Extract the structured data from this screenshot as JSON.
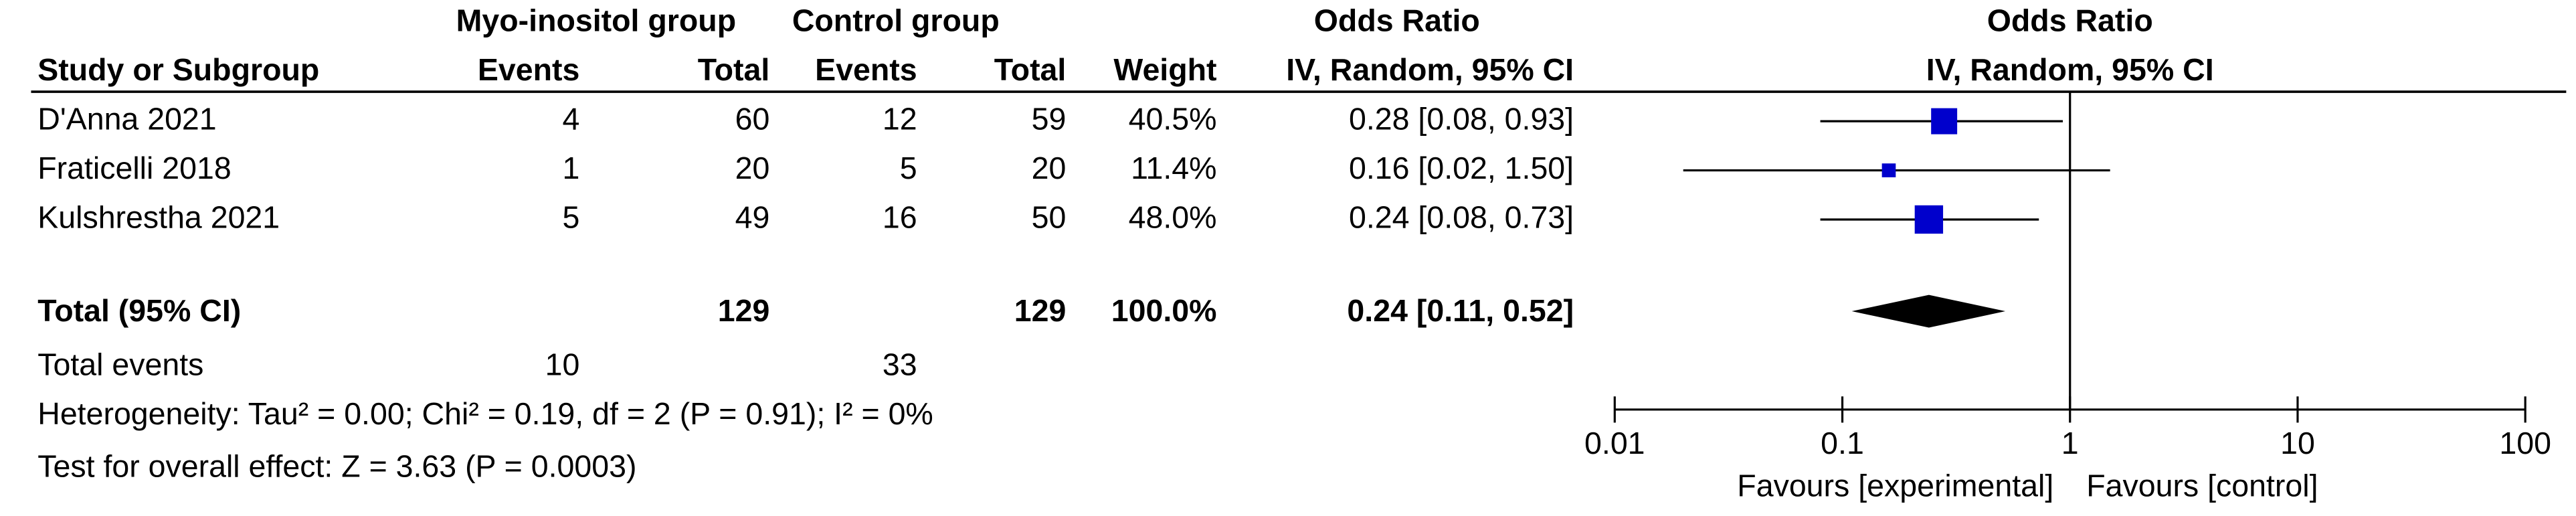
{
  "chart_data": {
    "type": "forest",
    "headers": {
      "group1": "Myo-inositol group",
      "group2": "Control group",
      "or_table": "Odds Ratio",
      "or_plot": "Odds Ratio",
      "study": "Study or Subgroup",
      "events1": "Events",
      "total1": "Total",
      "events2": "Events",
      "total2": "Total",
      "weight": "Weight",
      "method": "IV, Random, 95% CI",
      "plot_method": "IV, Random, 95% CI"
    },
    "studies": [
      {
        "name": "D'Anna 2021",
        "events1": 4,
        "total1": 60,
        "events2": 12,
        "total2": 59,
        "weight": 40.5,
        "weight_label": "40.5%",
        "or": 0.28,
        "ci_low": 0.08,
        "ci_high": 0.93,
        "or_label": "0.28 [0.08, 0.93]"
      },
      {
        "name": "Fraticelli 2018",
        "events1": 1,
        "total1": 20,
        "events2": 5,
        "total2": 20,
        "weight": 11.4,
        "weight_label": "11.4%",
        "or": 0.16,
        "ci_low": 0.02,
        "ci_high": 1.5,
        "or_label": "0.16 [0.02, 1.50]"
      },
      {
        "name": "Kulshrestha 2021",
        "events1": 5,
        "total1": 49,
        "events2": 16,
        "total2": 50,
        "weight": 48.0,
        "weight_label": "48.0%",
        "or": 0.24,
        "ci_low": 0.08,
        "ci_high": 0.73,
        "or_label": "0.24 [0.08, 0.73]"
      }
    ],
    "total": {
      "name": "Total (95% CI)",
      "total1": 129,
      "total2": 129,
      "weight": 100.0,
      "weight_label": "100.0%",
      "or": 0.24,
      "ci_low": 0.11,
      "ci_high": 0.52,
      "or_label": "0.24 [0.11, 0.52]"
    },
    "total_events": {
      "name": "Total events",
      "events1": 10,
      "events2": 33
    },
    "heterogeneity": "Heterogeneity: Tau² = 0.00; Chi² = 0.19, df = 2 (P = 0.91); I² = 0%",
    "overall_effect": "Test for overall effect: Z = 3.63 (P = 0.0003)",
    "xscale": "log",
    "xlim": [
      0.01,
      100
    ],
    "xticks": [
      0.01,
      0.1,
      1,
      10,
      100
    ],
    "favours_left": "Favours [experimental]",
    "favours_right": "Favours [control]",
    "marker_color": "#0000cc",
    "diamond_color": "#000000"
  }
}
